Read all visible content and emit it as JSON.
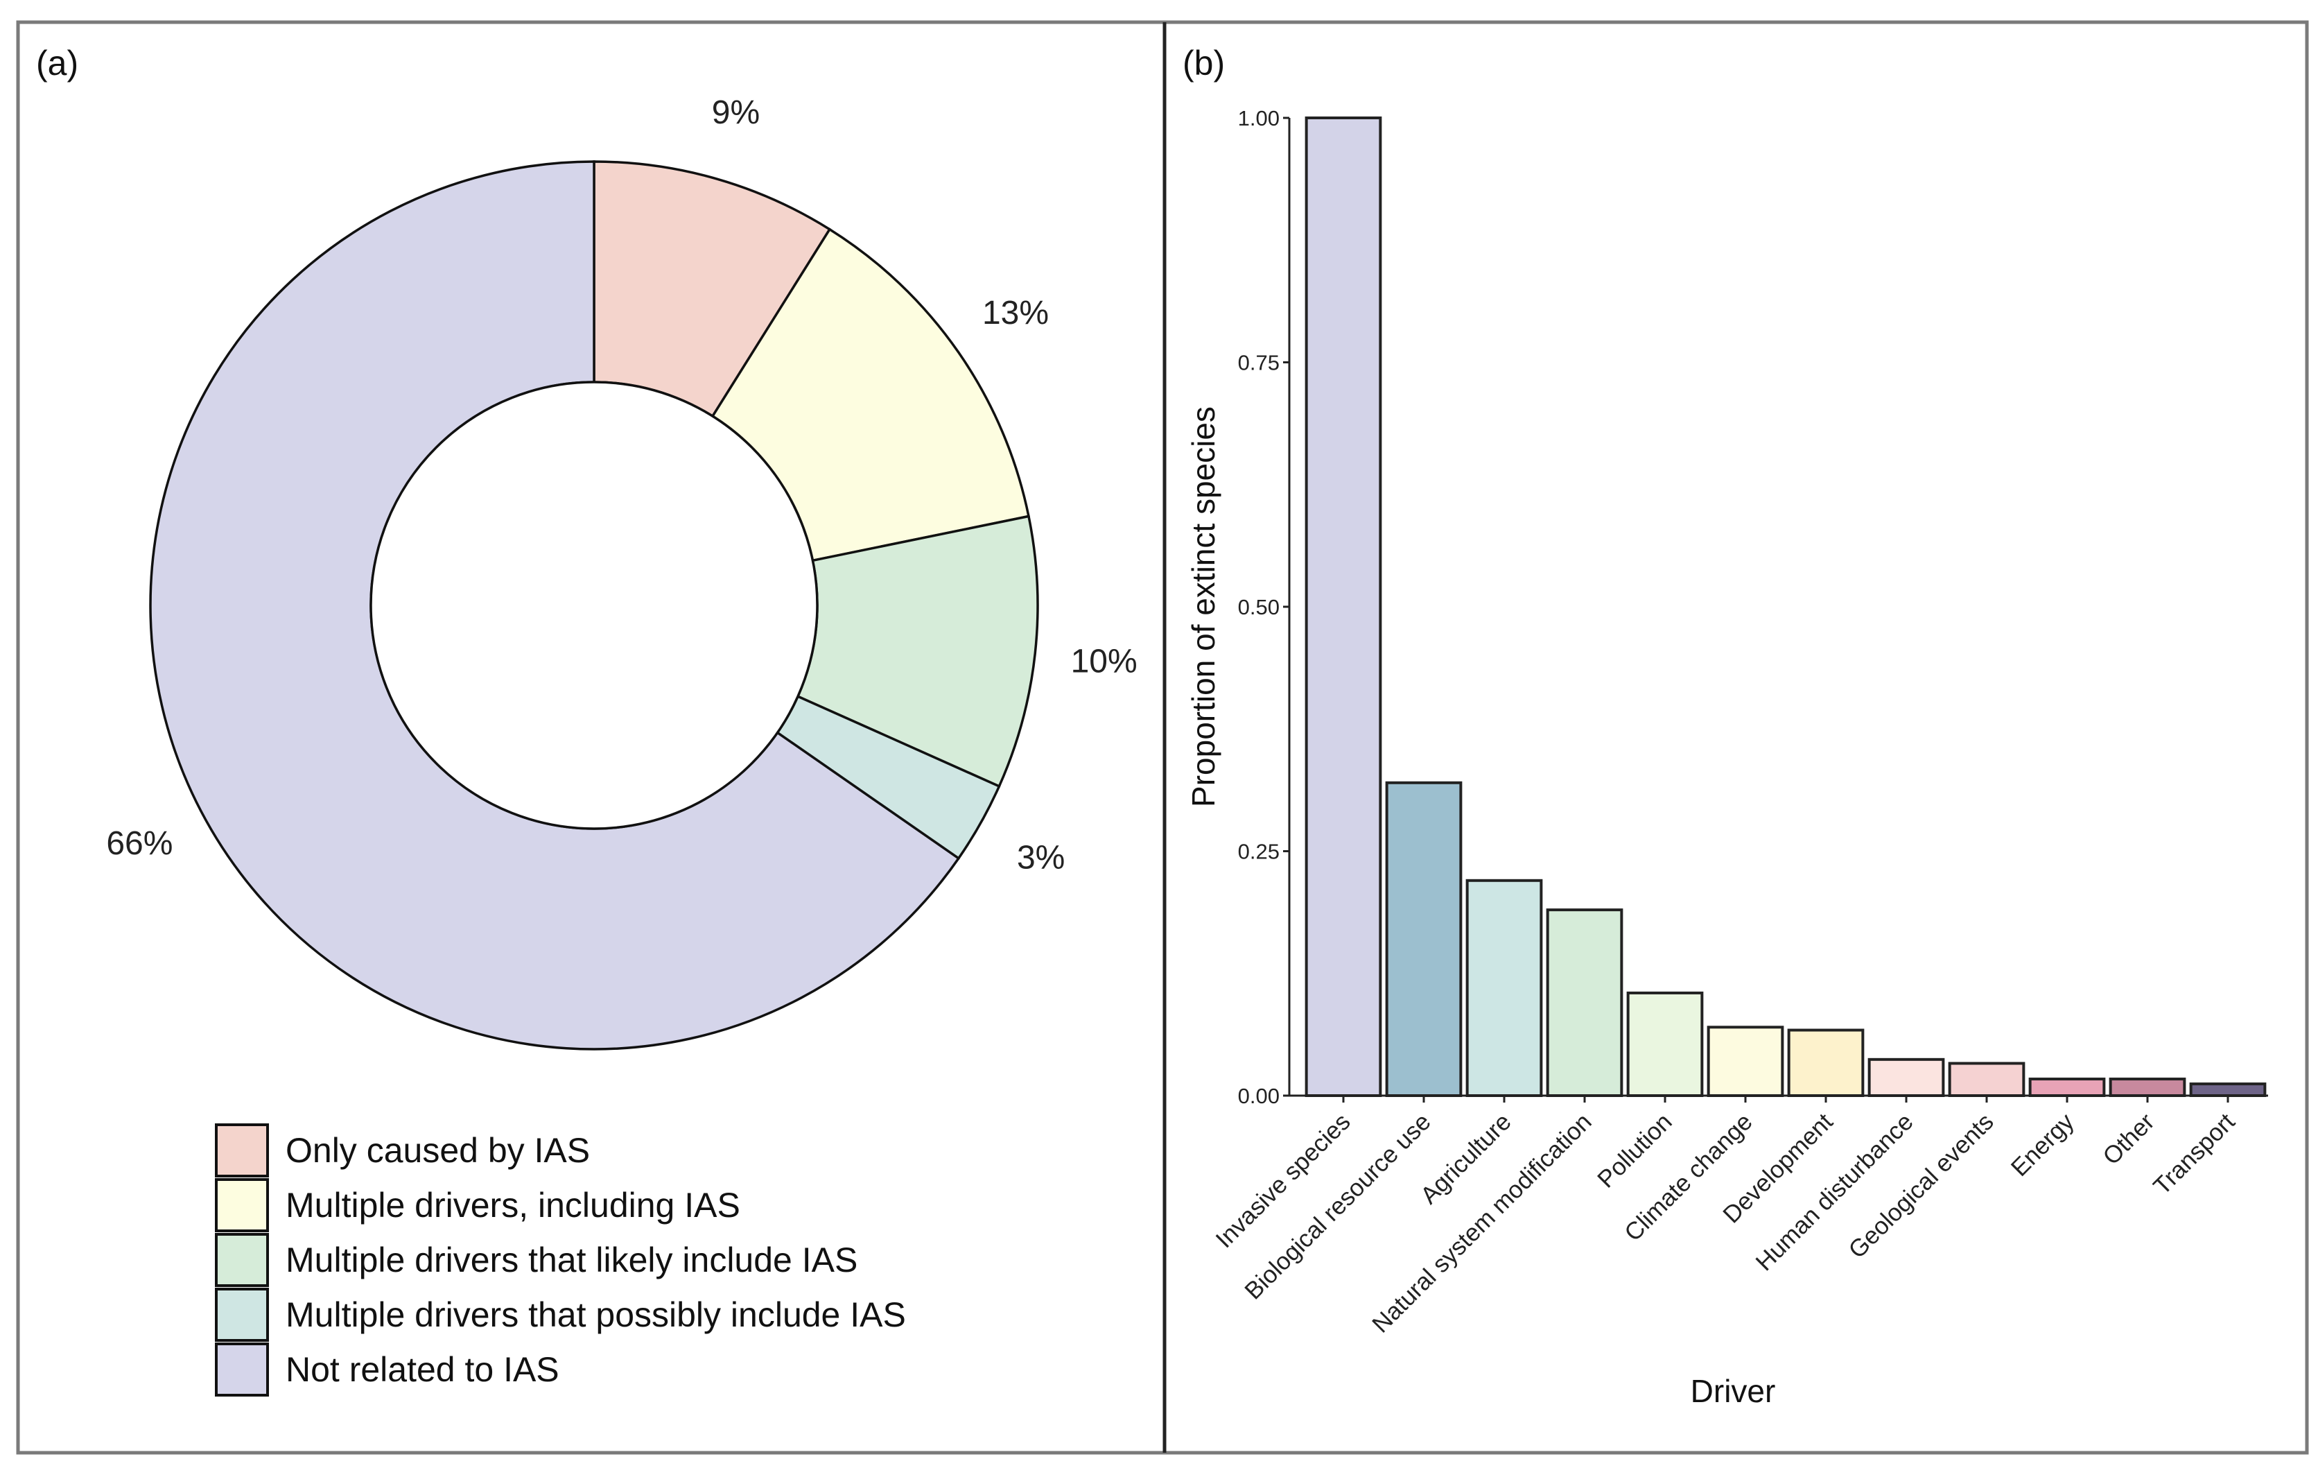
{
  "panels": {
    "a_label": "(a)",
    "b_label": "(b)"
  },
  "chart_data": [
    {
      "type": "pie",
      "style": "donut",
      "legend_position": "bottom",
      "slices": [
        {
          "label": "Only caused by IAS",
          "value": 9,
          "value_label": "9%",
          "color": "#f4d4cc"
        },
        {
          "label": "Multiple drivers, including IAS",
          "value": 13,
          "value_label": "13%",
          "color": "#fdfde0"
        },
        {
          "label": "Multiple drivers that likely include IAS",
          "value": 10,
          "value_label": "10%",
          "color": "#d6ecd9"
        },
        {
          "label": "Multiple drivers that possibly include IAS",
          "value": 3,
          "value_label": "3%",
          "color": "#cfe6e3"
        },
        {
          "label": "Not related to IAS",
          "value": 66,
          "value_label": "66%",
          "color": "#d5d5ea"
        }
      ]
    },
    {
      "type": "bar",
      "xlabel": "Driver",
      "ylabel": "Proportion of extinct species",
      "ylim": [
        0,
        1
      ],
      "yticks": [
        "0.00",
        "0.25",
        "0.50",
        "0.75",
        "1.00"
      ],
      "grid": false,
      "categories": [
        "Invasive species",
        "Biological resource use",
        "Agriculture",
        "Natural system modification",
        "Pollution",
        "Climate change",
        "Development",
        "Human disturbance",
        "Geological events",
        "Energy",
        "Other",
        "Transport"
      ],
      "values": [
        1.0,
        0.32,
        0.22,
        0.19,
        0.105,
        0.07,
        0.067,
        0.037,
        0.033,
        0.017,
        0.017,
        0.012
      ],
      "colors": [
        "#d3d3e8",
        "#9cbfcf",
        "#cde6e4",
        "#d6ecd9",
        "#eaf6e0",
        "#fdfbe0",
        "#fdf2cc",
        "#fbe4e0",
        "#f5d2d2",
        "#e8a3b6",
        "#c8899e",
        "#6e6488"
      ]
    }
  ]
}
